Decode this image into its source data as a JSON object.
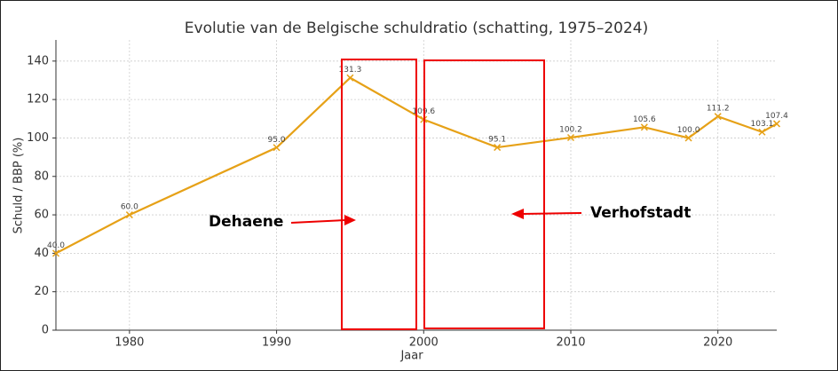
{
  "chart_data": {
    "type": "line",
    "title": "Evolutie van de Belgische schuldratio (schatting, 1975–2024)",
    "xlabel": "Jaar",
    "ylabel": "Schuld / BBP (%)",
    "x": [
      1975,
      1980,
      1990,
      1995,
      2000,
      2005,
      2010,
      2015,
      2018,
      2020,
      2023,
      2024
    ],
    "series": [
      {
        "name": "Schuldratio",
        "color": "#e6a117",
        "values": [
          40.0,
          60.0,
          95.0,
          131.3,
          109.6,
          95.1,
          100.2,
          105.6,
          100.0,
          111.2,
          103.1,
          107.4
        ],
        "value_labels": [
          "40.0",
          "60.0",
          "95.0",
          "131.3",
          "109.6",
          "95.1",
          "100.2",
          "105.6",
          "100.0",
          "111.2",
          "103.1",
          "107.4"
        ]
      }
    ],
    "xlim": [
      1975,
      2024
    ],
    "xticks": [
      1980,
      1990,
      2000,
      2010,
      2020
    ],
    "ylim": [
      0,
      151
    ],
    "yticks": [
      0,
      20,
      40,
      60,
      80,
      100,
      120,
      140
    ],
    "grid": true,
    "annotations": [
      "Dehaene",
      "Verhofstadt"
    ]
  }
}
